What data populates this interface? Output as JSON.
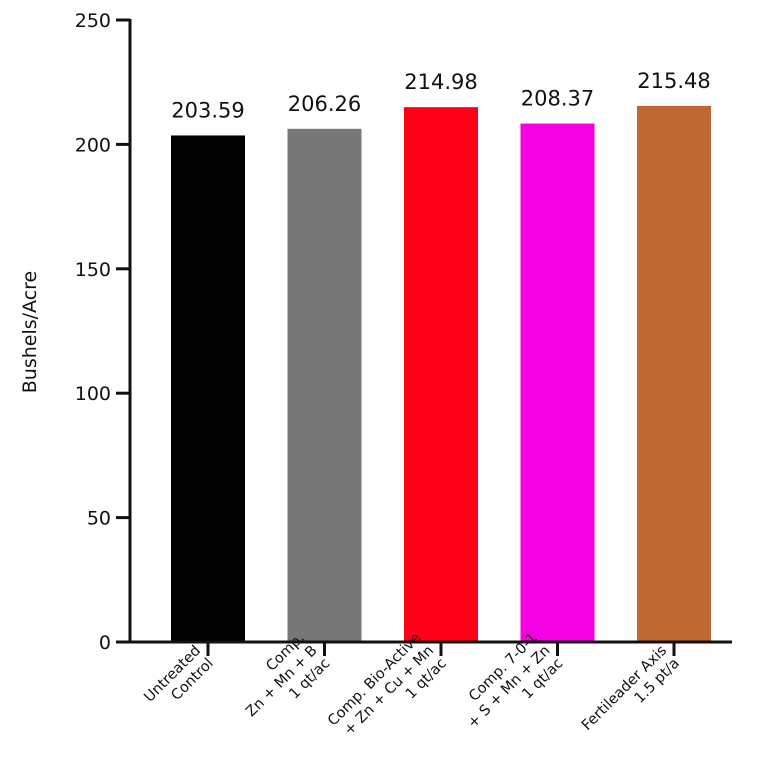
{
  "chart_data": {
    "type": "bar",
    "title": "",
    "xlabel": "",
    "ylabel": "Bushels/Acre",
    "ylim": [
      0,
      250
    ],
    "yticks": [
      0,
      50,
      100,
      150,
      200,
      250
    ],
    "grid": false,
    "legend": "none",
    "categories": [
      [
        "Untreated",
        "Control"
      ],
      [
        "Comp.",
        "Zn + Mn + B",
        "1 qt/ac"
      ],
      [
        "Comp. Bio-Active",
        "+ Zn + Cu + Mn",
        "1 qt/ac"
      ],
      [
        "Comp. 7-0-1",
        "+ S + Mn + Zn",
        "1 qt/ac"
      ],
      [
        "Fertileader Axis",
        "1.5 pt/a"
      ]
    ],
    "values": [
      203.59,
      206.26,
      214.98,
      208.37,
      215.48
    ],
    "value_labels": [
      "203.59",
      "206.26",
      "214.98",
      "208.37",
      "215.48"
    ],
    "colors": [
      "#000000",
      "#777777",
      "#ff0019",
      "#f300e3",
      "#c06834"
    ]
  }
}
